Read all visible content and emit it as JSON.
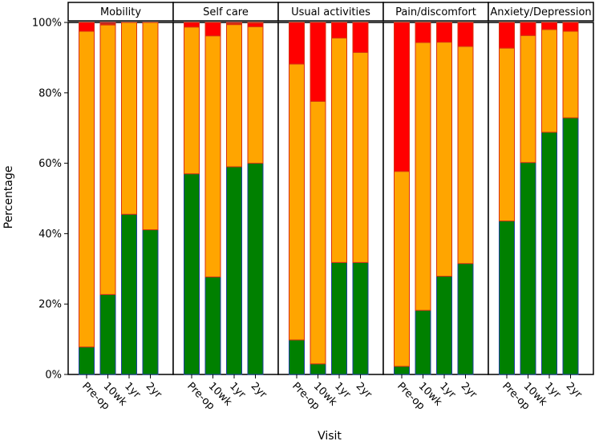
{
  "chart_data": {
    "type": "bar",
    "stacked": true,
    "xlabel": "Visit",
    "ylabel": "Percentage",
    "ylim": [
      0,
      100
    ],
    "y_ticks": [
      "0%",
      "20%",
      "40%",
      "60%",
      "80%",
      "100%"
    ],
    "categories": [
      "Pre-op",
      "10wk",
      "1yr",
      "2yr"
    ],
    "colors": {
      "level1": "#008000",
      "level2": "#FFA500",
      "level3": "#FF0000",
      "level4": "#9B1B3A",
      "bar_outline_blue": "#1f3fa0",
      "bar_outline_red": "#d83010"
    },
    "panels": [
      {
        "title": "Mobility",
        "series": [
          {
            "key": "level1",
            "values": [
              7.8,
              22.7,
              45.5,
              41.1
            ]
          },
          {
            "key": "level2",
            "values": [
              89.7,
              76.6,
              54.5,
              58.9
            ]
          },
          {
            "key": "level3",
            "values": [
              2.5,
              0.3,
              0,
              0
            ]
          },
          {
            "key": "level4",
            "values": [
              0,
              0.4,
              0,
              0
            ]
          }
        ]
      },
      {
        "title": "Self care",
        "series": [
          {
            "key": "level1",
            "values": [
              57.0,
              27.7,
              59.0,
              60.0
            ]
          },
          {
            "key": "level2",
            "values": [
              41.7,
              68.5,
              40.4,
              38.8
            ]
          },
          {
            "key": "level3",
            "values": [
              1.3,
              3.8,
              0.3,
              1.0
            ]
          },
          {
            "key": "level4",
            "values": [
              0,
              0,
              0.3,
              0.2
            ]
          }
        ]
      },
      {
        "title": "Usual activities",
        "series": [
          {
            "key": "level1",
            "values": [
              9.8,
              3.0,
              31.8,
              31.8
            ]
          },
          {
            "key": "level2",
            "values": [
              78.4,
              74.6,
              63.8,
              59.7
            ]
          },
          {
            "key": "level3",
            "values": [
              11.8,
              22.4,
              4.4,
              8.5
            ]
          },
          {
            "key": "level4",
            "values": [
              0,
              0,
              0,
              0
            ]
          }
        ]
      },
      {
        "title": "Pain/discomfort",
        "series": [
          {
            "key": "level1",
            "values": [
              2.3,
              18.2,
              27.9,
              31.5
            ]
          },
          {
            "key": "level2",
            "values": [
              55.4,
              76.1,
              66.5,
              61.7
            ]
          },
          {
            "key": "level3",
            "values": [
              42.3,
              5.7,
              5.6,
              6.8
            ]
          },
          {
            "key": "level4",
            "values": [
              0,
              0,
              0,
              0
            ]
          }
        ]
      },
      {
        "title": "Anxiety/Depression",
        "series": [
          {
            "key": "level1",
            "values": [
              43.6,
              60.2,
              68.8,
              72.9
            ]
          },
          {
            "key": "level2",
            "values": [
              49.1,
              36.1,
              29.2,
              24.6
            ]
          },
          {
            "key": "level3",
            "values": [
              7.3,
              3.7,
              2.0,
              2.5
            ]
          },
          {
            "key": "level4",
            "values": [
              0,
              0,
              0,
              0
            ]
          }
        ]
      }
    ]
  }
}
